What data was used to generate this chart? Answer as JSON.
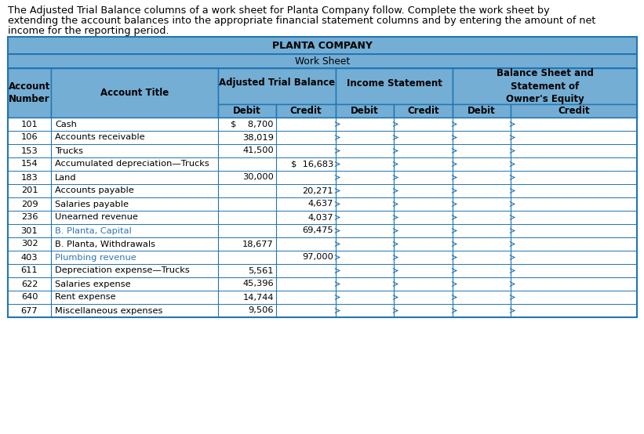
{
  "intro_line1": "The Adjusted Trial Balance columns of a work sheet for Planta Company follow. Complete the work sheet by",
  "intro_line2": "extending the account balances into the appropriate financial statement columns and by entering the amount of net",
  "intro_line3": "income for the reporting period.",
  "company_title": "PLANTA COMPANY",
  "sheet_title": "Work Sheet",
  "group_headers": {
    "atb": "Adjusted Trial Balance",
    "is_": "Income Statement",
    "bs": "Balance Sheet and\nStatement of\nOwner's Equity"
  },
  "col_header_acct_num": "Account\nNumber",
  "col_header_acct_title": "Account Title",
  "sub_headers": [
    "Debit",
    "Credit",
    "Debit",
    "Credit",
    "Debit",
    "Credit"
  ],
  "rows": [
    {
      "num": "101",
      "title": "Cash",
      "atb_d": "$    8,700",
      "atb_c": "",
      "title_color": "black"
    },
    {
      "num": "106",
      "title": "Accounts receivable",
      "atb_d": "38,019",
      "atb_c": "",
      "title_color": "black"
    },
    {
      "num": "153",
      "title": "Trucks",
      "atb_d": "41,500",
      "atb_c": "",
      "title_color": "black"
    },
    {
      "num": "154",
      "title": "Accumulated depreciation—Trucks",
      "atb_d": "",
      "atb_c": "$  16,683",
      "title_color": "black"
    },
    {
      "num": "183",
      "title": "Land",
      "atb_d": "30,000",
      "atb_c": "",
      "title_color": "black"
    },
    {
      "num": "201",
      "title": "Accounts payable",
      "atb_d": "",
      "atb_c": "20,271",
      "title_color": "black"
    },
    {
      "num": "209",
      "title": "Salaries payable",
      "atb_d": "",
      "atb_c": "4,637",
      "title_color": "black"
    },
    {
      "num": "236",
      "title": "Unearned revenue",
      "atb_d": "",
      "atb_c": "4,037",
      "title_color": "black"
    },
    {
      "num": "301",
      "title": "B. Planta, Capital",
      "atb_d": "",
      "atb_c": "69,475",
      "title_color": "#2E75B6"
    },
    {
      "num": "302",
      "title": "B. Planta, Withdrawals",
      "atb_d": "18,677",
      "atb_c": "",
      "title_color": "black"
    },
    {
      "num": "403",
      "title": "Plumbing revenue",
      "atb_d": "",
      "atb_c": "97,000",
      "title_color": "#2E75B6"
    },
    {
      "num": "611",
      "title": "Depreciation expense—Trucks",
      "atb_d": "5,561",
      "atb_c": "",
      "title_color": "black"
    },
    {
      "num": "622",
      "title": "Salaries expense",
      "atb_d": "45,396",
      "atb_c": "",
      "title_color": "black"
    },
    {
      "num": "640",
      "title": "Rent expense",
      "atb_d": "14,744",
      "atb_c": "",
      "title_color": "black"
    },
    {
      "num": "677",
      "title": "Miscellaneous expenses",
      "atb_d": "9,506",
      "atb_c": "",
      "title_color": "black"
    }
  ],
  "header_bg": "#74AED4",
  "border_color": "#2175B4",
  "text_black": "#1a1a1a",
  "font_size_intro": 9.2,
  "font_size_table": 8.2,
  "font_size_header": 8.5
}
